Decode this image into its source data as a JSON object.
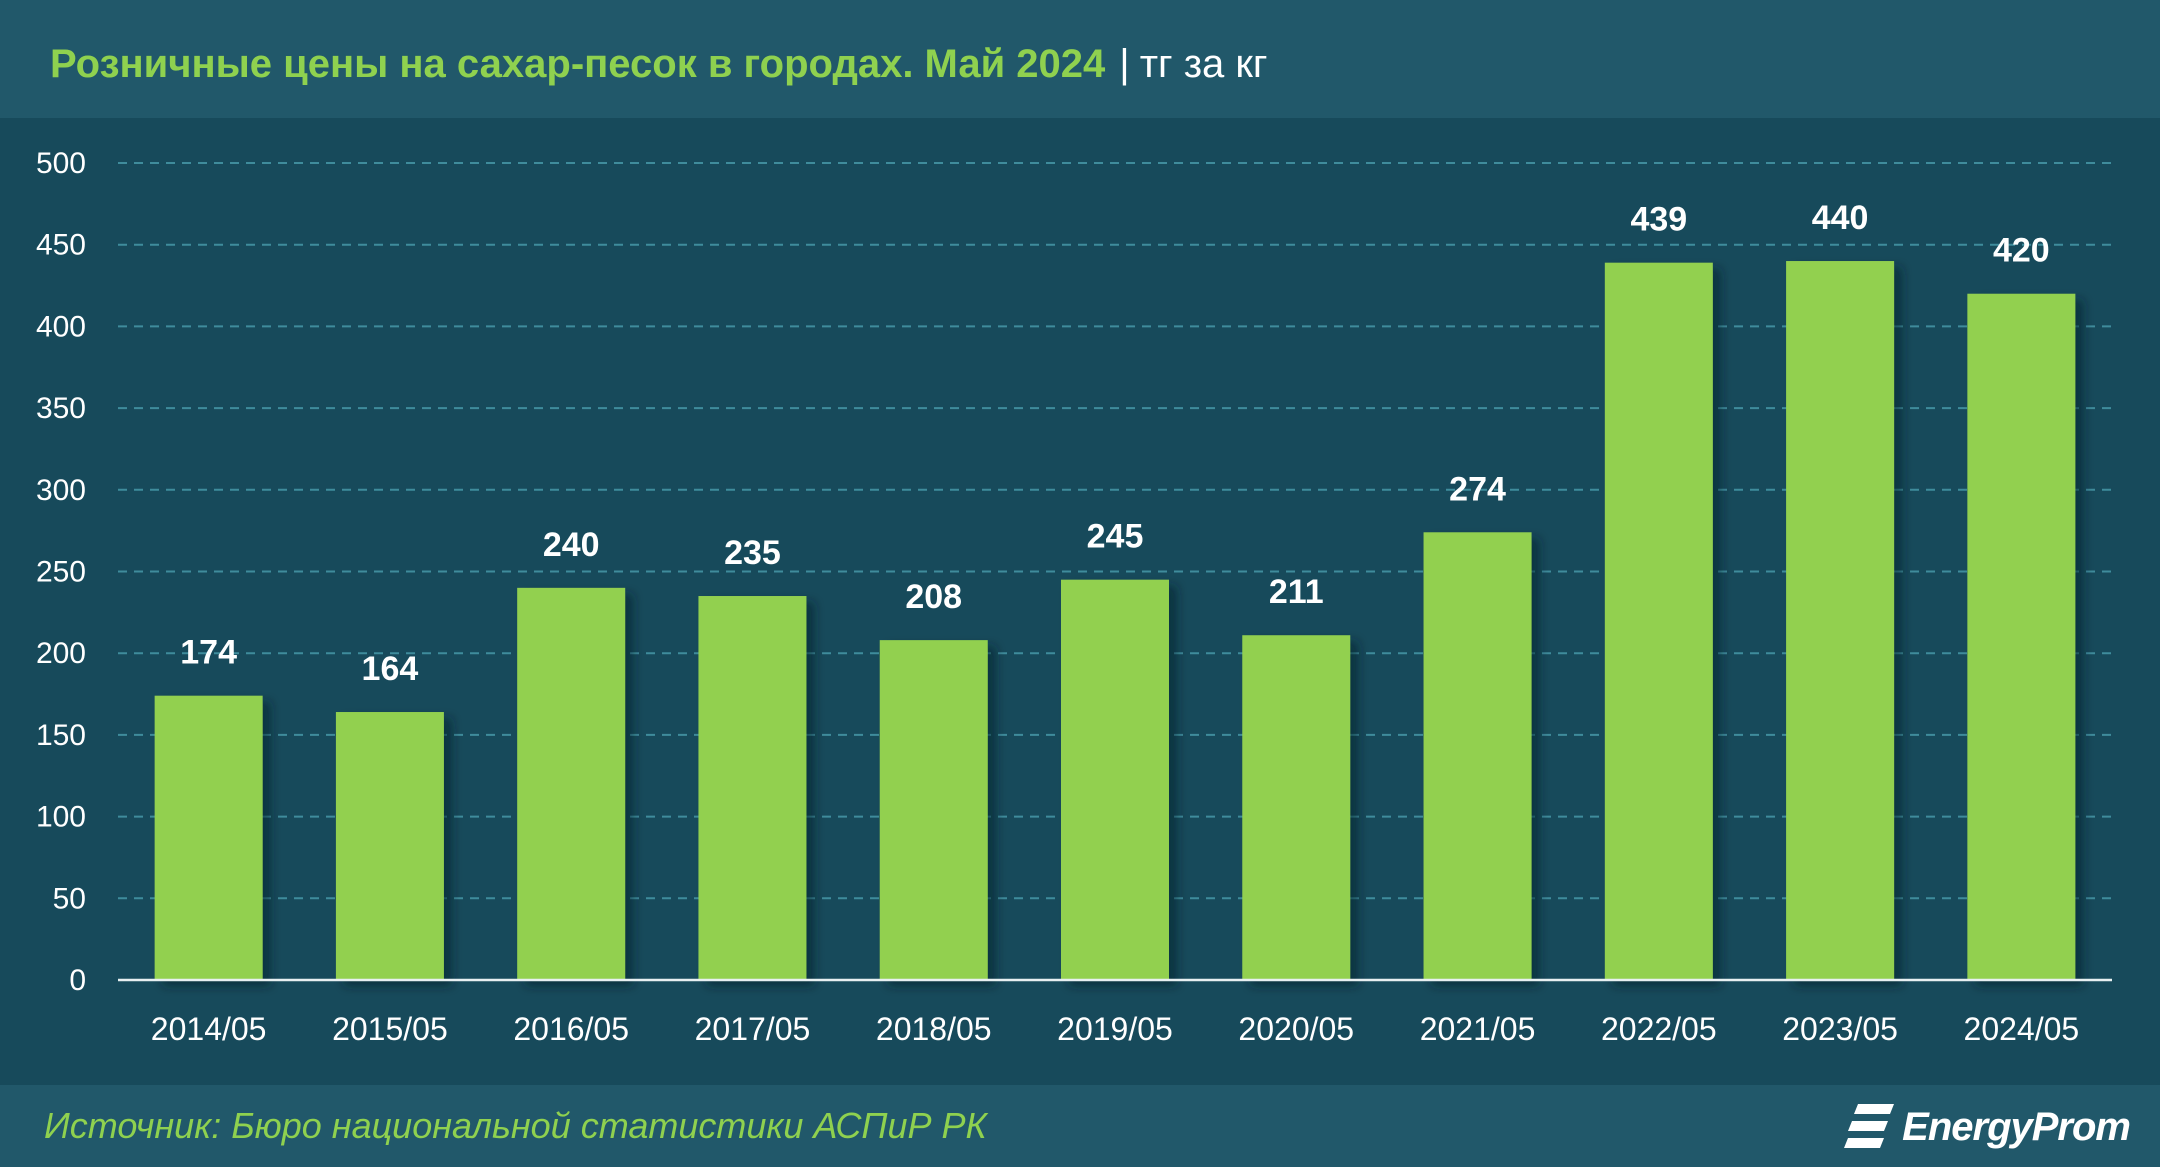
{
  "header": {
    "title": "Розничные цены на сахар-песок в городах. Май 2024",
    "separator": "|",
    "unit": "тг за кг"
  },
  "footer": {
    "source": "Источник: Бюро национальной статистики АСПиР РК",
    "brand": "EnergyProm"
  },
  "colors": {
    "bar": "#92d050",
    "background": "#174a5b",
    "header": "#21586a",
    "gridline": "#3f8c9c",
    "title": "#8fd14f"
  },
  "chart_data": {
    "type": "bar",
    "categories": [
      "2014/05",
      "2015/05",
      "2016/05",
      "2017/05",
      "2018/05",
      "2019/05",
      "2020/05",
      "2021/05",
      "2022/05",
      "2023/05",
      "2024/05"
    ],
    "values": [
      174,
      164,
      240,
      235,
      208,
      245,
      211,
      274,
      439,
      440,
      420
    ],
    "ylim": [
      0,
      500
    ],
    "yticks": [
      0,
      50,
      100,
      150,
      200,
      250,
      300,
      350,
      400,
      450,
      500
    ],
    "grid": true,
    "grid_style": "dashed",
    "data_labels": true,
    "legend": "none"
  }
}
